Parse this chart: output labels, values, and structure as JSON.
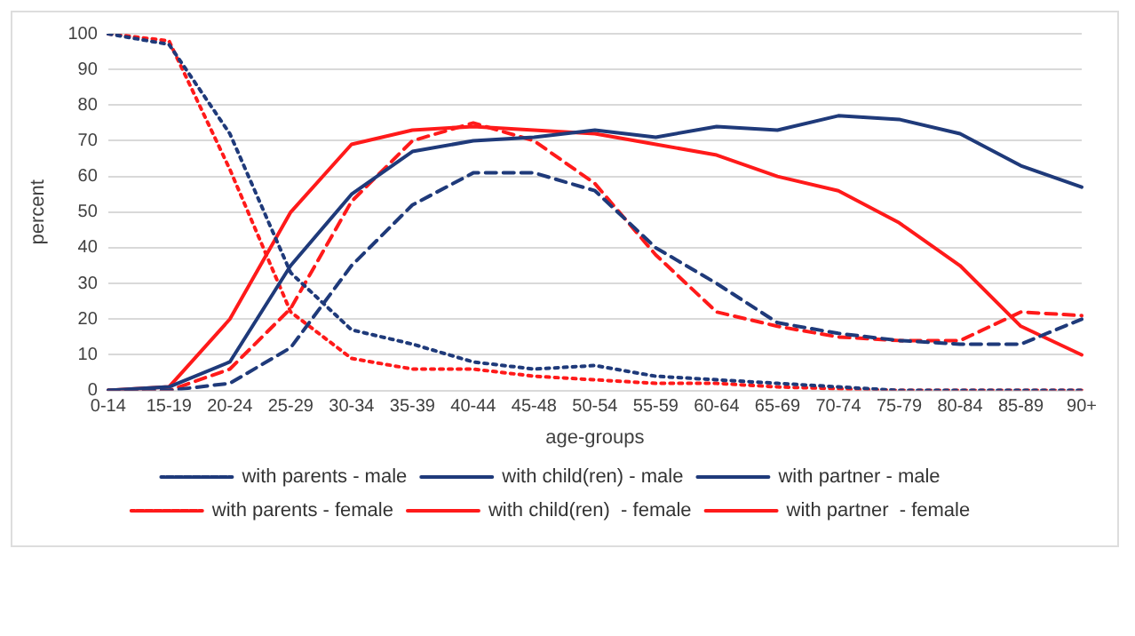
{
  "chart_data": {
    "type": "line",
    "xlabel": "age-groups",
    "ylabel": "percent",
    "categories": [
      "0-14",
      "15-19",
      "20-24",
      "25-29",
      "30-34",
      "35-39",
      "40-44",
      "45-48",
      "50-54",
      "55-59",
      "60-64",
      "65-69",
      "70-74",
      "75-79",
      "80-84",
      "85-89",
      "90+"
    ],
    "series": [
      {
        "name": "with parents - male",
        "color": "#1f3a7a",
        "line_style": "dotted",
        "values": [
          100,
          97,
          72,
          33,
          17,
          13,
          8,
          6,
          7,
          4,
          3,
          2,
          1,
          0,
          0,
          0,
          0
        ]
      },
      {
        "name": "with child(ren) - male",
        "color": "#1f3a7a",
        "line_style": "dashed",
        "values": [
          0,
          0,
          2,
          12,
          35,
          52,
          61,
          61,
          56,
          40,
          30,
          19,
          16,
          14,
          13,
          13,
          20
        ]
      },
      {
        "name": "with partner - male",
        "color": "#1f3a7a",
        "line_style": "solid",
        "values": [
          0,
          1,
          8,
          35,
          55,
          67,
          70,
          71,
          73,
          71,
          74,
          73,
          77,
          76,
          72,
          63,
          57
        ]
      },
      {
        "name": "with parents - female",
        "color": "#ff1a1a",
        "line_style": "dotted",
        "values": [
          100,
          98,
          62,
          22,
          9,
          6,
          6,
          4,
          3,
          2,
          2,
          1,
          0.5,
          0,
          0,
          0,
          0
        ]
      },
      {
        "name": "with child(ren)  - female",
        "color": "#ff1a1a",
        "line_style": "dashed",
        "values": [
          0,
          0,
          6,
          23,
          53,
          70,
          75,
          70,
          58,
          38,
          22,
          18,
          15,
          14,
          14,
          22,
          21
        ]
      },
      {
        "name": "with partner  - female",
        "color": "#ff1a1a",
        "line_style": "solid",
        "values": [
          0,
          1,
          20,
          50,
          69,
          73,
          74,
          73,
          72,
          69,
          66,
          60,
          56,
          47,
          35,
          18,
          10
        ]
      }
    ],
    "ylim": [
      0,
      100
    ],
    "yticks": [
      0,
      10,
      20,
      30,
      40,
      50,
      60,
      70,
      80,
      90,
      100
    ],
    "grid": "y",
    "legend": "bottom",
    "marker": "none"
  }
}
